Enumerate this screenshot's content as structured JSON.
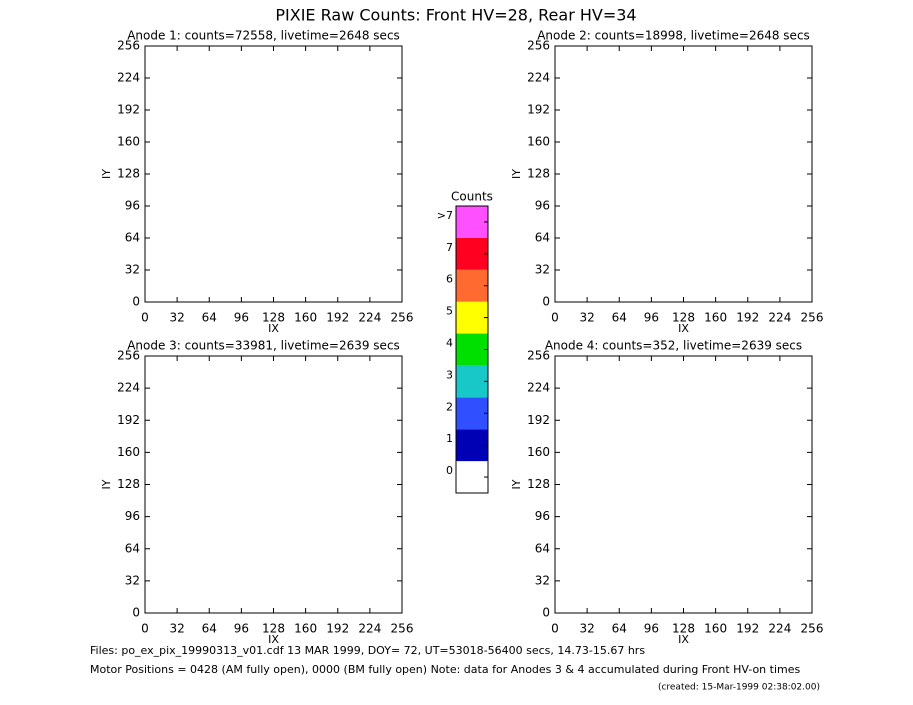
{
  "header": {
    "title": "PIXIE Raw Counts:  Front HV=28, Rear HV=34"
  },
  "chart_data": [
    {
      "type": "heatmap",
      "title": "Anode 1: counts=72558, livetime=2648 secs",
      "xlabel": "IX",
      "ylabel": "IY",
      "xlim": [
        0,
        256
      ],
      "ylim": [
        0,
        256
      ],
      "xticks": [
        0,
        32,
        64,
        96,
        128,
        160,
        192,
        224,
        256
      ],
      "yticks": [
        0,
        32,
        64,
        96,
        128,
        160,
        192,
        224,
        256
      ]
    },
    {
      "type": "heatmap",
      "title": "Anode 2: counts=18998, livetime=2648 secs",
      "xlabel": "IX",
      "ylabel": "IY",
      "xlim": [
        0,
        256
      ],
      "ylim": [
        0,
        256
      ],
      "xticks": [
        0,
        32,
        64,
        96,
        128,
        160,
        192,
        224,
        256
      ],
      "yticks": [
        0,
        32,
        64,
        96,
        128,
        160,
        192,
        224,
        256
      ]
    },
    {
      "type": "heatmap",
      "title": "Anode 3: counts=33981, livetime=2639 secs",
      "xlabel": "IX",
      "ylabel": "IY",
      "xlim": [
        0,
        256
      ],
      "ylim": [
        0,
        256
      ],
      "xticks": [
        0,
        32,
        64,
        96,
        128,
        160,
        192,
        224,
        256
      ],
      "yticks": [
        0,
        32,
        64,
        96,
        128,
        160,
        192,
        224,
        256
      ]
    },
    {
      "type": "heatmap",
      "title": "Anode 4: counts=352, livetime=2639 secs",
      "xlabel": "IX",
      "ylabel": "IY",
      "xlim": [
        0,
        256
      ],
      "ylim": [
        0,
        256
      ],
      "xticks": [
        0,
        32,
        64,
        96,
        128,
        160,
        192,
        224,
        256
      ],
      "yticks": [
        0,
        32,
        64,
        96,
        128,
        160,
        192,
        224,
        256
      ]
    }
  ],
  "colorbar": {
    "title": "Counts",
    "ticks": [
      0,
      1,
      2,
      3,
      4,
      5,
      6,
      7,
      {
        "value": 8,
        "label": ">7"
      }
    ],
    "colors": [
      "#ffffff",
      "#0000b4",
      "#3050ff",
      "#18c8c8",
      "#00e000",
      "#ffff00",
      "#ff6a30",
      "#ff0020",
      "#ff50ff"
    ]
  },
  "footer": {
    "line1": "Files: po_ex_pix_19990313_v01.cdf    13 MAR 1999, DOY= 72, UT=53018-56400 secs, 14.73-15.67 hrs",
    "line2": "Motor Positions = 0428 (AM fully open), 0000 (BM fully open)    Note: data for Anodes 3 & 4 accumulated during Front HV-on times",
    "created": "(created: 15-Mar-1999 02:38:02.00)"
  }
}
